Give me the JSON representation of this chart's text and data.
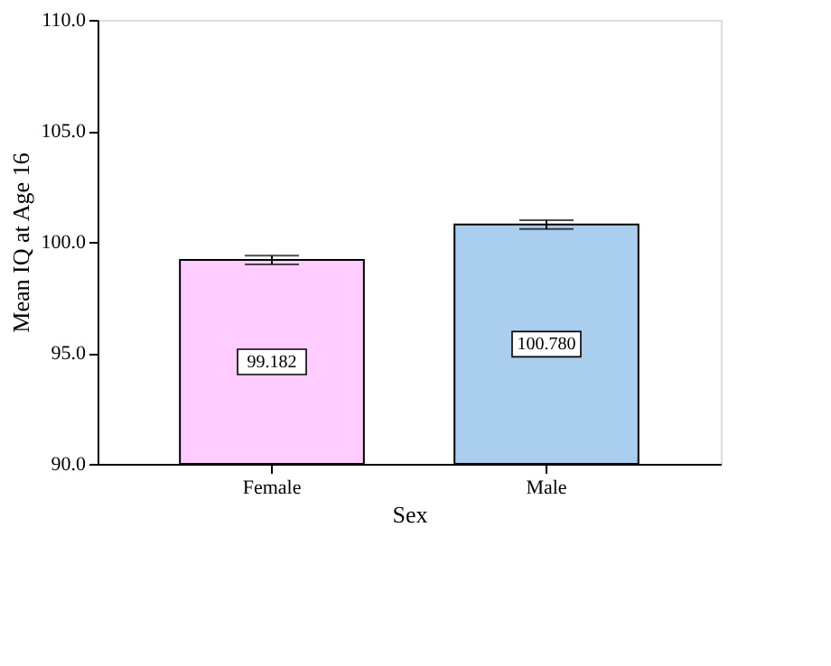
{
  "chart_data": {
    "type": "bar",
    "xlabel": "Sex",
    "ylabel": "Mean IQ at Age 16",
    "categories": [
      "Female",
      "Male"
    ],
    "values": [
      99.182,
      100.78
    ],
    "colors": [
      "#ffccff",
      "#aacfee"
    ],
    "errors": [
      0.2,
      0.2
    ],
    "value_labels": [
      "99.182",
      "100.780"
    ],
    "ylim": [
      90,
      110
    ],
    "yticks": [
      {
        "value": 90,
        "label": "90.0"
      },
      {
        "value": 95,
        "label": "95.0"
      },
      {
        "value": 100,
        "label": "100.0"
      },
      {
        "value": 105,
        "label": "105.0"
      },
      {
        "value": 110,
        "label": "110.0"
      }
    ],
    "grid": false
  }
}
